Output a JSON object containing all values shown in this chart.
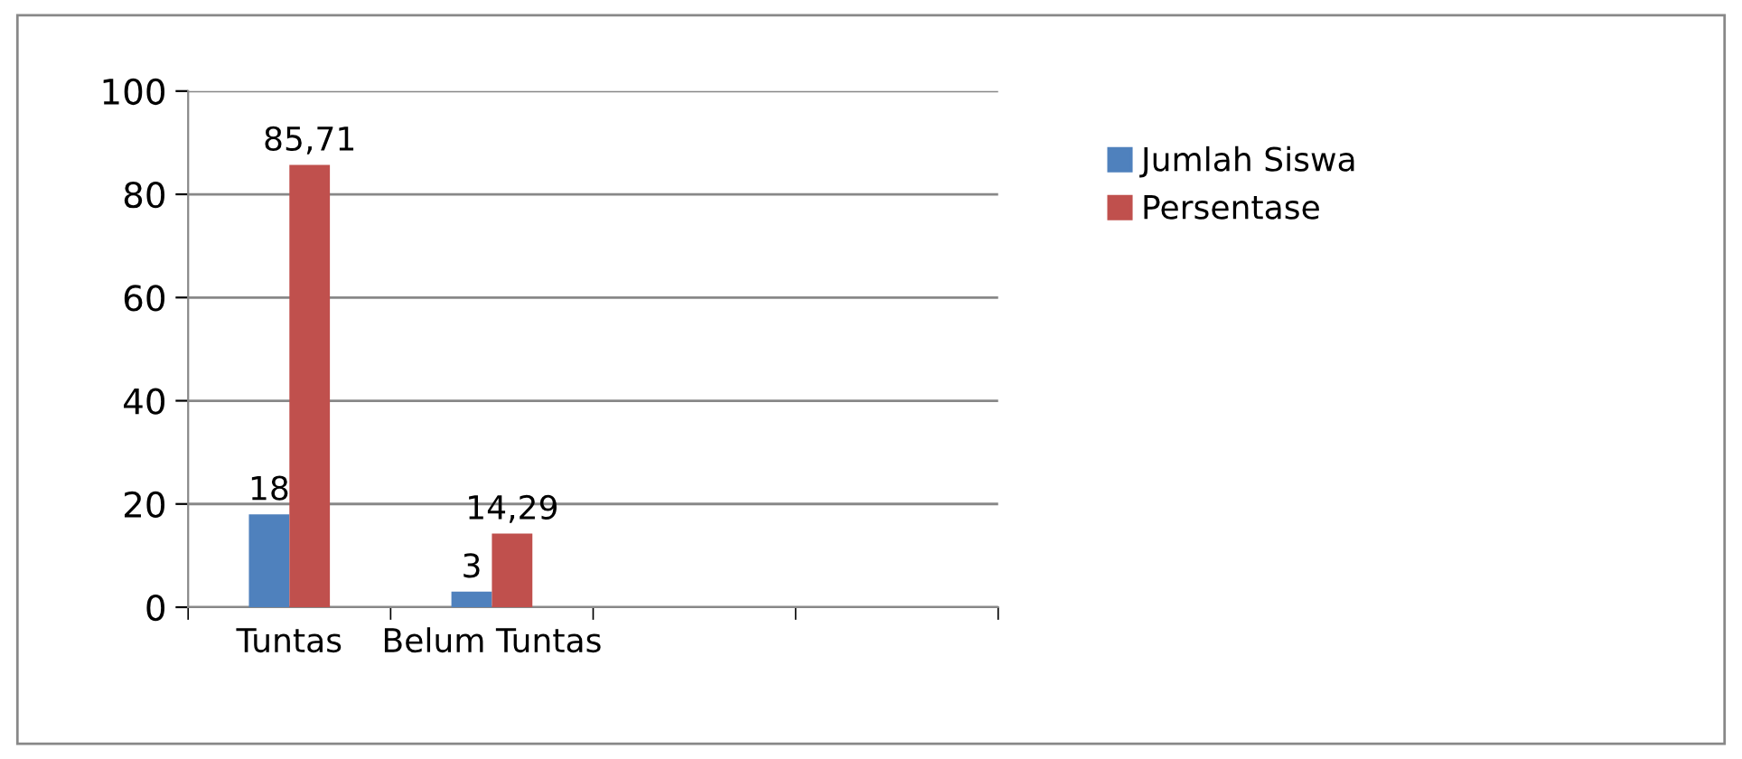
{
  "chart_data": {
    "type": "bar",
    "categories": [
      "Tuntas",
      "Belum Tuntas",
      null,
      null
    ],
    "series": [
      {
        "name": "Jumlah Siswa",
        "color": "#4f81bd",
        "values": [
          18,
          3,
          null,
          null
        ],
        "value_labels": [
          "18",
          "3",
          null,
          null
        ]
      },
      {
        "name": "Persentase",
        "color": "#c0504d",
        "values": [
          85.71,
          14.29,
          null,
          null
        ],
        "value_labels": [
          "85,71",
          "14,29",
          null,
          null
        ]
      }
    ],
    "ylim": [
      0,
      100
    ],
    "yticks": [
      0,
      20,
      40,
      60,
      80,
      100
    ],
    "grid": "y",
    "legend": "right"
  }
}
